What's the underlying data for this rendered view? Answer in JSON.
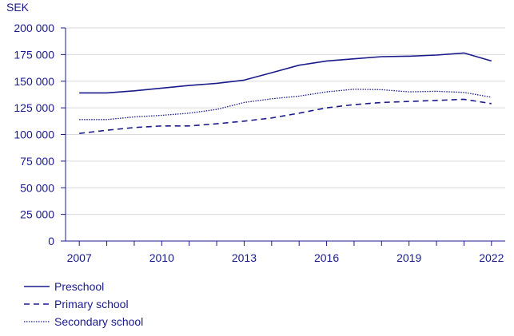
{
  "chart_data": {
    "type": "line",
    "title": "",
    "ylabel": "SEK",
    "xlabel": "",
    "ylim": [
      0,
      200000
    ],
    "xlim": [
      2006.5,
      2022.5
    ],
    "yticks": [
      0,
      25000,
      50000,
      75000,
      100000,
      125000,
      150000,
      175000,
      200000
    ],
    "ytick_labels": [
      "0",
      "25 000",
      "50 000",
      "75 000",
      "100 000",
      "125 000",
      "150 000",
      "175 000",
      "200 000"
    ],
    "xticks": [
      2007,
      2010,
      2013,
      2016,
      2019,
      2022
    ],
    "xtick_labels": [
      "2007",
      "2010",
      "2013",
      "2016",
      "2019",
      "2022"
    ],
    "x": [
      2007,
      2008,
      2009,
      2010,
      2011,
      2012,
      2013,
      2014,
      2015,
      2016,
      2017,
      2018,
      2019,
      2020,
      2021,
      2022
    ],
    "series": [
      {
        "name": "Preschool",
        "style": "solid",
        "values": [
          139000,
          139000,
          141000,
          143500,
          146000,
          148000,
          151000,
          158000,
          165000,
          169000,
          171000,
          173000,
          173500,
          174500,
          176500,
          169000
        ]
      },
      {
        "name": "Primary school",
        "style": "dashed",
        "values": [
          101000,
          104000,
          106500,
          108000,
          108000,
          110000,
          112500,
          115500,
          120000,
          125000,
          128000,
          130000,
          131000,
          132000,
          133000,
          129000
        ]
      },
      {
        "name": "Secondary school",
        "style": "dotted",
        "values": [
          114000,
          114000,
          116500,
          118000,
          120000,
          123500,
          130000,
          133500,
          136000,
          140000,
          142500,
          142000,
          140000,
          140500,
          139500,
          135000
        ]
      }
    ],
    "legend": {
      "placement": "bottom-left"
    },
    "grid": true,
    "colors": {
      "line": "#1a1a8c",
      "grid": "#d9d9d9",
      "axis": "#1a1a8c"
    }
  }
}
